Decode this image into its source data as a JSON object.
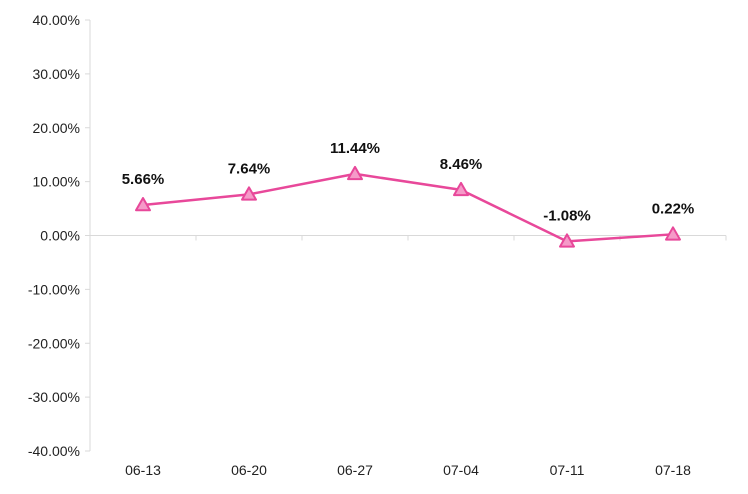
{
  "chart_data": {
    "type": "line",
    "title": "",
    "xlabel": "",
    "ylabel": "",
    "categories": [
      "06-13",
      "06-20",
      "06-27",
      "07-04",
      "07-11",
      "07-18"
    ],
    "series": [
      {
        "values": [
          5.66,
          7.64,
          11.44,
          8.46,
          -1.08,
          0.22
        ],
        "labels": [
          "5.66%",
          "7.64%",
          "11.44%",
          "8.46%",
          "-1.08%",
          "0.22%"
        ],
        "color": "#e8489a",
        "marker": "triangle"
      }
    ],
    "ylim": [
      -40,
      40
    ],
    "yticks": [
      40,
      30,
      20,
      10,
      0,
      -10,
      -20,
      -30,
      -40
    ],
    "ytick_labels": [
      "40.00%",
      "30.00%",
      "20.00%",
      "10.00%",
      "0.00%",
      "-10.00%",
      "-20.00%",
      "-30.00%",
      "-40.00%"
    ],
    "grid": false,
    "legend": "none",
    "colors": {
      "axis": "#d9d9d9",
      "marker_fill": "#f59ac8"
    }
  }
}
